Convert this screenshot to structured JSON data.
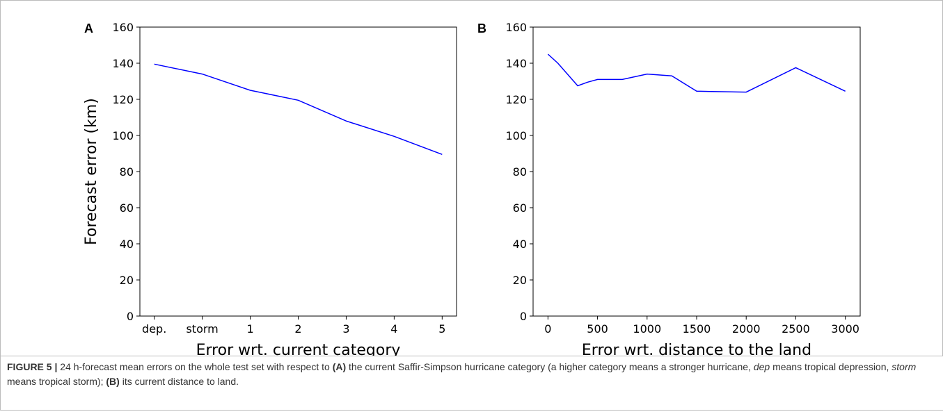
{
  "chart_data": [
    {
      "type": "line",
      "panel_label": "A",
      "ylabel": "Forecast error (km)",
      "xlabel": "Error wrt. current category",
      "categories": [
        "dep.",
        "storm",
        "1",
        "2",
        "3",
        "4",
        "5"
      ],
      "values": [
        139.5,
        134,
        125,
        119.5,
        108,
        99.5,
        89.5
      ],
      "color": "#0000ff",
      "ylim": [
        0,
        160
      ],
      "yticks": [
        0,
        20,
        40,
        60,
        80,
        100,
        120,
        140,
        160
      ]
    },
    {
      "type": "line",
      "panel_label": "B",
      "xlabel": "Error wrt. distance to the land",
      "x": [
        0,
        100,
        300,
        400,
        500,
        750,
        1000,
        1250,
        1500,
        2000,
        2500,
        3000
      ],
      "values": [
        145,
        140,
        127.5,
        129.5,
        131,
        131,
        134,
        133,
        124.5,
        124,
        137.5,
        124.5
      ],
      "color": "#0000ff",
      "xlim": [
        -150,
        3150
      ],
      "xticks": [
        0,
        500,
        1000,
        1500,
        2000,
        2500,
        3000
      ],
      "ylim": [
        0,
        160
      ],
      "yticks": [
        0,
        20,
        40,
        60,
        80,
        100,
        120,
        140,
        160
      ]
    }
  ],
  "caption": [
    {
      "text": "FIGURE 5 |",
      "bold": true
    },
    {
      "text": " 24 h-forecast mean errors on the whole test set with respect to "
    },
    {
      "text": "(A)",
      "bold": true
    },
    {
      "text": " the current Saffir-Simpson hurricane category (a higher category means a stronger hurricane, "
    },
    {
      "text": "dep",
      "italic": true
    },
    {
      "text": " means tropical depression, "
    },
    {
      "text": "storm",
      "italic": true
    },
    {
      "text": " means tropical storm); "
    },
    {
      "text": "(B)",
      "bold": true
    },
    {
      "text": " its current distance to land."
    }
  ]
}
